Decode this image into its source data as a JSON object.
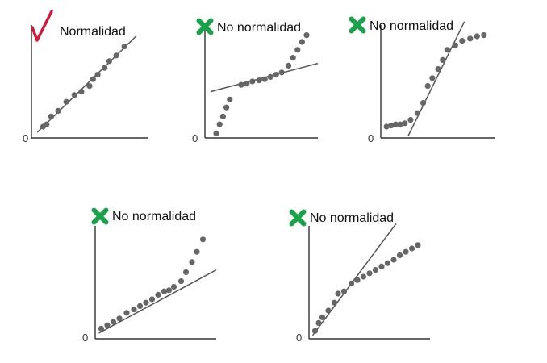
{
  "colors": {
    "check": "#d0183a",
    "cross": "#19a24a",
    "points": "#666666",
    "line": "#555555",
    "axis": "#333333"
  },
  "chart_data": [
    {
      "type": "scatter",
      "label": "Normalidad",
      "badge": "check-icon",
      "origin_label": "0",
      "x": [
        1,
        1.3,
        1.7,
        2.3,
        3,
        3.7,
        4.3,
        5,
        5.3,
        5.7,
        6.3,
        6.7,
        7.3,
        8
      ],
      "y": [
        1,
        1.2,
        1.9,
        2.4,
        3.2,
        3.8,
        4.1,
        4.6,
        5.2,
        5.6,
        6.2,
        6.8,
        7.3,
        8.1
      ],
      "reference_line": {
        "x": [
          0.5,
          9
        ],
        "y": [
          0.5,
          9
        ]
      },
      "xlim": [
        0,
        10
      ],
      "ylim": [
        0,
        10
      ]
    },
    {
      "type": "scatter",
      "label": "No normalidad",
      "badge": "cross-icon",
      "origin_label": "0",
      "x": [
        1,
        1.3,
        1.6,
        1.9,
        2.2,
        3.2,
        3.7,
        4.2,
        4.8,
        5.3,
        5.8,
        6.3,
        6.8,
        7.4,
        7.8,
        8.2,
        8.6,
        9
      ],
      "y": [
        0.4,
        1.2,
        1.9,
        2.7,
        3.4,
        4.7,
        4.8,
        5,
        5.1,
        5.2,
        5.4,
        5.6,
        5.8,
        6.4,
        7.1,
        7.8,
        8.5,
        9.1
      ],
      "reference_line": {
        "x": [
          0.5,
          10
        ],
        "y": [
          4.1,
          6.6
        ]
      },
      "xlim": [
        0,
        10
      ],
      "ylim": [
        0,
        10
      ]
    },
    {
      "type": "scatter",
      "label": "No normalidad",
      "badge": "cross-icon",
      "origin_label": "0",
      "x": [
        0.5,
        0.9,
        1.3,
        1.7,
        2.1,
        2.6,
        3.2,
        3.7,
        4.1,
        4.5,
        5,
        5.4,
        5.8,
        6.5,
        7.1,
        7.8,
        8.4,
        9
      ],
      "y": [
        1,
        1.1,
        1.2,
        1.2,
        1.3,
        1.6,
        2.2,
        3.1,
        4.6,
        5.3,
        6.1,
        6.9,
        7.8,
        8.2,
        8.6,
        8.8,
        9,
        9.1
      ],
      "reference_line": {
        "x": [
          2.4,
          7.3
        ],
        "y": [
          0.2,
          10.3
        ]
      },
      "xlim": [
        0,
        10
      ],
      "ylim": [
        0,
        10
      ]
    },
    {
      "type": "scatter",
      "label": "No normalidad",
      "badge": "cross-icon",
      "origin_label": "0",
      "x": [
        0.5,
        1,
        1.5,
        2,
        2.6,
        3.2,
        3.7,
        4.2,
        4.7,
        5.2,
        5.7,
        6.1,
        6.5,
        7.1,
        7.5,
        8,
        8.4,
        8.9
      ],
      "y": [
        0.9,
        1.2,
        1.5,
        1.8,
        2.3,
        2.6,
        2.9,
        3.2,
        3.5,
        3.9,
        4.2,
        4.3,
        4.6,
        5.1,
        5.9,
        6.8,
        7.7,
        8.8
      ],
      "reference_line": {
        "x": [
          0.3,
          10
        ],
        "y": [
          0.5,
          6.1
        ]
      },
      "xlim": [
        0,
        10
      ],
      "ylim": [
        0,
        10
      ]
    },
    {
      "type": "scatter",
      "label": "No normalidad",
      "badge": "cross-icon",
      "origin_label": "0",
      "x": [
        0.5,
        0.8,
        1.1,
        1.6,
        2.1,
        2.4,
        2.9,
        3.5,
        4,
        4.5,
        5,
        5.5,
        6,
        6.5,
        7,
        7.5,
        8,
        8.5,
        9
      ],
      "y": [
        0.7,
        1.4,
        1.9,
        2.5,
        3.2,
        4,
        4.2,
        4.9,
        5.2,
        5.5,
        5.8,
        6.1,
        6.4,
        6.7,
        7,
        7.4,
        7.7,
        8,
        8.3
      ],
      "reference_line": {
        "x": [
          0.3,
          7.2
        ],
        "y": [
          0.3,
          10.2
        ]
      },
      "xlim": [
        0,
        10
      ],
      "ylim": [
        0,
        10
      ]
    }
  ]
}
